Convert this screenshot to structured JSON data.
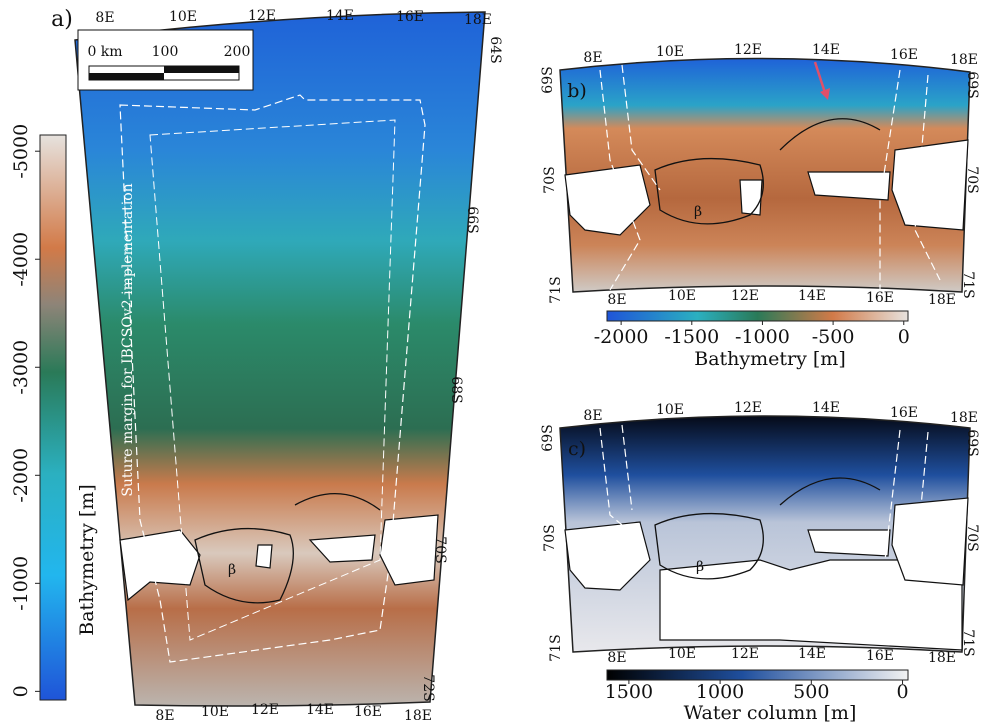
{
  "figure": {
    "panel_a": {
      "label": "a)",
      "lon_top": [
        "8E",
        "10E",
        "12E",
        "14E",
        "16E",
        "18E"
      ],
      "lon_bottom": [
        "8E",
        "10E",
        "12E",
        "14E",
        "16E",
        "18E"
      ],
      "lat": [
        "64S",
        "66S",
        "68S",
        "70S",
        "72S"
      ],
      "scale_bar": [
        "0 km",
        "100",
        "200"
      ],
      "annotation": "Suture margin for IBCSOv2 implementation",
      "marker": "β",
      "colorbar": {
        "label": "Bathymetry [m]",
        "ticks": [
          0,
          -1000,
          -2000,
          -3000,
          -4000,
          -5000
        ],
        "lim": [
          80,
          -5150
        ]
      }
    },
    "panel_b": {
      "label": "b)",
      "lon_top": [
        "8E",
        "10E",
        "12E",
        "14E",
        "16E",
        "18E"
      ],
      "lon_bottom": [
        "8E",
        "10E",
        "12E",
        "14E",
        "16E",
        "18E"
      ],
      "lat_left": [
        "69S",
        "70S",
        "71S"
      ],
      "lat_right": [
        "69S",
        "70S",
        "71S"
      ],
      "marker": "β",
      "colorbar": {
        "label": "Bathymetry [m]",
        "ticks": [
          -2000,
          -1500,
          -1000,
          -500,
          0
        ],
        "lim": [
          -2100,
          30
        ]
      }
    },
    "panel_c": {
      "label": "c)",
      "lon_top": [
        "8E",
        "10E",
        "12E",
        "14E",
        "16E",
        "18E"
      ],
      "lon_bottom": [
        "8E",
        "10E",
        "12E",
        "14E",
        "16E",
        "18E"
      ],
      "lat_left": [
        "69S",
        "70S",
        "71S"
      ],
      "lat_right": [
        "69S",
        "70S",
        "71S"
      ],
      "marker": "β",
      "colorbar": {
        "label": "Water column [m]",
        "ticks": [
          1500,
          1000,
          500,
          0
        ],
        "lim": [
          1620,
          -30
        ]
      }
    }
  }
}
